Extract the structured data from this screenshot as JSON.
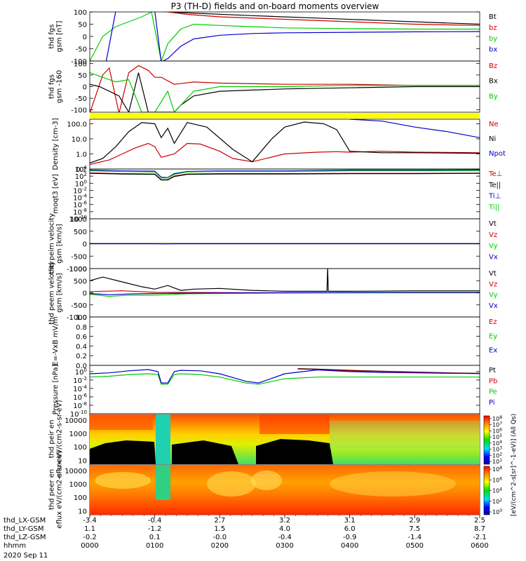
{
  "title": "P3 (TH-D) fields and on-board moments overview",
  "time_axis": {
    "rows": [
      {
        "label": "thd_LX-GSM",
        "values": [
          "-3.4",
          "-0.4",
          "2.7",
          "3.2",
          "3.1",
          "2.9",
          "2.5"
        ]
      },
      {
        "label": "thd_LY-GSM",
        "values": [
          "1.1",
          "-1.2",
          "1.5",
          "4.0",
          "6.0",
          "7.5",
          "8.7"
        ]
      },
      {
        "label": "thd_LZ-GSM",
        "values": [
          "-0.2",
          "0.1",
          "-0.0",
          "-0.4",
          "-0.9",
          "-1.4",
          "-2.1"
        ]
      },
      {
        "label": "hhmm",
        "values": [
          "0000",
          "0100",
          "0200",
          "0300",
          "0400",
          "0500",
          "0600"
        ]
      }
    ],
    "date": "2020 Sep 11"
  },
  "colorbar_label": "[eV/(cm^2-s[sr]^-1-eV)] (All Qs)",
  "chart_data": [
    {
      "type": "line",
      "ylabel": "thd fgs gsm [nT]",
      "ticks": [
        "100",
        "50",
        "0",
        "-50",
        "-100"
      ],
      "ylim": [
        -100,
        100
      ],
      "series": [
        {
          "name": "Bt",
          "color": "#000000",
          "t": [
            0.3,
            0.4,
            0.5,
            0.7,
            0.9,
            1.0,
            1.5,
            2.5,
            3.5,
            4.5,
            5.5,
            6.0
          ],
          "v": [
            400,
            300,
            180,
            120,
            110,
            105,
            96,
            85,
            75,
            65,
            55,
            50
          ]
        },
        {
          "name": "bz",
          "color": "#cc0000",
          "t": [
            0.3,
            0.5,
            0.9,
            1.0,
            1.2,
            1.5,
            2.0,
            3.0,
            4.0,
            5.0,
            6.0
          ],
          "v": [
            300,
            250,
            150,
            120,
            100,
            90,
            80,
            70,
            60,
            50,
            45
          ]
        },
        {
          "name": "by",
          "color": "#00cc00",
          "t": [
            0.0,
            0.2,
            0.4,
            0.6,
            0.8,
            0.95,
            1.1,
            1.2,
            1.4,
            1.6,
            2.0,
            2.5,
            3.0,
            4.0,
            5.0,
            6.0
          ],
          "v": [
            -100,
            0,
            40,
            60,
            80,
            100,
            -100,
            -30,
            30,
            50,
            45,
            40,
            35,
            32,
            30,
            30
          ]
        },
        {
          "name": "bx",
          "color": "#0000cc",
          "t": [
            0.0,
            0.25,
            0.4,
            0.8,
            1.0,
            1.1,
            1.2,
            1.4,
            1.6,
            2.0,
            2.5,
            3.0,
            4.0,
            5.0,
            6.0
          ],
          "v": [
            -300,
            -200,
            200,
            300,
            300,
            -300,
            -90,
            -40,
            -10,
            5,
            12,
            15,
            17,
            19,
            20
          ]
        }
      ]
    },
    {
      "type": "line",
      "ylabel": "thd fgs gsm -160",
      "ticks": [
        "100",
        "50",
        "0",
        "-50",
        "-100"
      ],
      "ylim": [
        -110,
        110
      ],
      "series": [
        {
          "name": "Bz",
          "color": "#cc0000",
          "t": [
            0.0,
            0.2,
            0.3,
            0.45,
            0.6,
            0.75,
            0.9,
            1.0,
            1.1,
            1.3,
            1.6,
            2.0,
            3.0,
            4.0,
            5.0,
            6.0
          ],
          "v": [
            -120,
            50,
            80,
            -120,
            60,
            90,
            70,
            40,
            40,
            10,
            20,
            15,
            10,
            10,
            5,
            5
          ]
        },
        {
          "name": "Bx",
          "color": "#000000",
          "t": [
            0.0,
            0.15,
            0.3,
            0.45,
            0.6,
            0.75,
            0.9,
            1.0,
            1.3,
            1.4,
            1.6,
            2.0,
            3.0,
            4.0,
            5.0,
            6.0
          ],
          "v": [
            10,
            0,
            -20,
            -40,
            -110,
            60,
            -110,
            -110,
            -110,
            -80,
            -40,
            -20,
            -10,
            -5,
            0,
            0
          ]
        },
        {
          "name": "By",
          "color": "#00cc00",
          "t": [
            0.0,
            0.2,
            0.4,
            0.6,
            0.8,
            1.0,
            1.2,
            1.3,
            1.4,
            1.6,
            2.0,
            3.0,
            4.0,
            5.0,
            6.0
          ],
          "v": [
            60,
            40,
            20,
            30,
            -110,
            -110,
            -20,
            -110,
            -80,
            -20,
            0,
            0,
            5,
            5,
            5
          ]
        }
      ]
    },
    {
      "type": "line",
      "ylabel": "Density [cm-3]",
      "ticks": [
        "100.0",
        "10.0",
        "1.0",
        "0.1"
      ],
      "ylim": [
        0.1,
        200
      ],
      "log": true,
      "series": [
        {
          "name": "Ne",
          "color": "#cc0000",
          "t": [
            0.0,
            0.3,
            0.5,
            0.7,
            0.9,
            1.0,
            1.1,
            1.3,
            1.5,
            1.7,
            2.0,
            2.2,
            2.5,
            3.0,
            3.5,
            3.8,
            4.0,
            4.5,
            5.0,
            6.0
          ],
          "v": [
            0.2,
            0.4,
            1.0,
            2.5,
            5.0,
            3.0,
            0.6,
            1.0,
            5.0,
            4.5,
            1.5,
            0.5,
            0.3,
            1.0,
            1.3,
            1.4,
            1.3,
            1.5,
            1.3,
            1.2
          ]
        },
        {
          "name": "Ni",
          "color": "#000000",
          "t": [
            0.0,
            0.2,
            0.4,
            0.6,
            0.8,
            1.0,
            1.1,
            1.2,
            1.3,
            1.5,
            1.8,
            2.2,
            2.5,
            2.8,
            3.0,
            3.3,
            3.6,
            3.8,
            4.0,
            4.5,
            5.0,
            6.0
          ],
          "v": [
            0.25,
            0.5,
            3.0,
            30,
            120,
            100,
            12,
            50,
            5,
            120,
            60,
            2.0,
            0.3,
            10,
            60,
            130,
            100,
            40,
            1.5,
            1.2,
            1.2,
            1.1
          ]
        },
        {
          "name": "Npot",
          "color": "#0000cc",
          "t": [
            4.0,
            4.5,
            5.0,
            5.5,
            6.0
          ],
          "v": [
            200,
            150,
            60,
            30,
            12
          ]
        }
      ]
    },
    {
      "type": "line",
      "ylabel": "moqt3 [eV]",
      "ticks": [
        "10^4",
        "10^2",
        "10^0",
        "10^-2",
        "10^-4",
        "10^-6",
        "10^-8",
        "10^-10"
      ],
      "ylim": [
        1e-10,
        10000.0
      ],
      "log": true,
      "series": [
        {
          "name": "Te⊥",
          "color": "#cc0000",
          "t": [
            0.0,
            0.5,
            1.0,
            1.1,
            1.2,
            1.3,
            1.5,
            2.0,
            3.0,
            4.0,
            5.0,
            6.0
          ],
          "v": [
            800,
            500,
            400,
            10,
            10,
            100,
            400,
            500,
            500,
            600,
            600,
            700
          ]
        },
        {
          "name": "Te||",
          "color": "#000000",
          "t": [
            0.0,
            0.5,
            1.0,
            1.1,
            1.2,
            1.3,
            1.5,
            2.0,
            3.0,
            4.0,
            5.0,
            6.0
          ],
          "v": [
            600,
            400,
            300,
            8,
            8,
            80,
            300,
            400,
            400,
            500,
            500,
            600
          ]
        },
        {
          "name": "Ti⊥",
          "color": "#0000cc",
          "t": [
            0.0,
            0.5,
            1.0,
            1.1,
            1.2,
            1.3,
            1.5,
            2.0,
            3.0,
            4.0,
            5.0,
            6.0
          ],
          "v": [
            5000,
            3000,
            2500,
            50,
            40,
            500,
            2000,
            3000,
            3000,
            5000,
            5000,
            6000
          ]
        },
        {
          "name": "Ti||",
          "color": "#00cc00",
          "t": [
            0.0,
            0.5,
            1.0,
            1.1,
            1.2,
            1.3,
            1.5,
            2.0,
            3.0,
            4.0,
            5.0,
            6.0
          ],
          "v": [
            3000,
            2000,
            1500,
            30,
            30,
            300,
            1500,
            2000,
            2000,
            3000,
            3000,
            3500
          ]
        }
      ]
    },
    {
      "type": "line",
      "ylabel": "thd peim velocity gsm [km/s]",
      "ticks": [
        "1000",
        "500",
        "0",
        "-500",
        "-1000"
      ],
      "ylim": [
        -1000,
        1000
      ],
      "series": [
        {
          "name": "Vt",
          "color": "#000000",
          "t": [
            0.0,
            6.0
          ],
          "v": [
            5,
            5
          ]
        },
        {
          "name": "Vz",
          "color": "#cc0000",
          "t": [
            0.0,
            1.0,
            1.1,
            1.2,
            1.3,
            6.0
          ],
          "v": [
            0,
            0,
            8,
            8,
            0,
            0
          ]
        },
        {
          "name": "Vy",
          "color": "#00cc00",
          "t": [
            0.0,
            6.0
          ],
          "v": [
            0,
            0
          ]
        },
        {
          "name": "Vx",
          "color": "#0000cc",
          "t": [
            0.0,
            1.0,
            1.1,
            1.2,
            1.3,
            6.0
          ],
          "v": [
            0,
            0,
            -8,
            -8,
            0,
            0
          ]
        }
      ]
    },
    {
      "type": "line",
      "ylabel": "thd peem velocity gsm [km/s]",
      "ticks": [
        "1000",
        "500",
        "0",
        "-500",
        "-1000"
      ],
      "ylim": [
        -1000,
        1000
      ],
      "series": [
        {
          "name": "Vt",
          "color": "#000000",
          "t": [
            0.0,
            0.2,
            0.5,
            0.8,
            1.0,
            1.2,
            1.4,
            1.6,
            2.0,
            2.5,
            3.0,
            3.5,
            3.65,
            3.66,
            3.67,
            4.0,
            5.0,
            6.0
          ],
          "v": [
            500,
            650,
            450,
            250,
            150,
            300,
            100,
            150,
            180,
            100,
            60,
            60,
            60,
            1500,
            60,
            60,
            80,
            80
          ]
        },
        {
          "name": "Vz",
          "color": "#cc0000",
          "t": [
            0.0,
            0.5,
            1.0,
            2.0,
            3.0,
            4.0,
            5.0,
            6.0
          ],
          "v": [
            50,
            80,
            20,
            10,
            0,
            0,
            0,
            0
          ]
        },
        {
          "name": "Vy",
          "color": "#00cc00",
          "t": [
            0.0,
            0.3,
            0.6,
            0.9,
            1.2,
            1.5,
            2.0,
            3.0,
            4.0,
            5.0,
            6.0
          ],
          "v": [
            -60,
            -150,
            -100,
            -100,
            -80,
            -40,
            -30,
            -10,
            0,
            10,
            10
          ]
        },
        {
          "name": "Vx",
          "color": "#0000cc",
          "t": [
            0.0,
            0.3,
            0.6,
            1.0,
            1.5,
            2.0,
            3.0,
            4.0,
            5.0,
            6.0
          ],
          "v": [
            -30,
            -80,
            -50,
            -30,
            -20,
            -10,
            0,
            10,
            20,
            20
          ]
        }
      ]
    },
    {
      "type": "line",
      "ylabel": "E=-VxB mV/m",
      "ticks": [
        "1.0",
        "0.8",
        "0.6",
        "0.4",
        "0.2",
        "0.0"
      ],
      "ylim": [
        0,
        1
      ],
      "series": [
        {
          "name": "Ez",
          "color": "#cc0000",
          "t": [],
          "v": []
        },
        {
          "name": "Ey",
          "color": "#00cc00",
          "t": [],
          "v": []
        },
        {
          "name": "Ex",
          "color": "#0000cc",
          "t": [],
          "v": []
        }
      ]
    },
    {
      "type": "line",
      "ylabel": "Pressure [nPa]",
      "ticks": [
        "10^0",
        "10^-2",
        "10^-4",
        "10^-6",
        "10^-8",
        "10^-10"
      ],
      "ylim": [
        1e-10,
        30
      ],
      "log": true,
      "series": [
        {
          "name": "Pt",
          "color": "#000000",
          "t": [
            3.2,
            3.5,
            4.0,
            4.5,
            5.0,
            5.5,
            6.0
          ],
          "v": [
            5,
            4,
            2,
            1.2,
            0.8,
            0.5,
            0.4
          ]
        },
        {
          "name": "Pb",
          "color": "#cc0000",
          "t": [
            3.2,
            3.5,
            4.0,
            4.5,
            5.0,
            5.5,
            6.0
          ],
          "v": [
            4,
            3,
            1.5,
            1.0,
            0.7,
            0.45,
            0.35
          ]
        },
        {
          "name": "Pe",
          "color": "#00cc00",
          "t": [
            0.0,
            0.3,
            0.6,
            0.9,
            1.05,
            1.1,
            1.2,
            1.3,
            1.4,
            1.7,
            2.0,
            2.4,
            2.6,
            3.0,
            3.5,
            4.0,
            4.5,
            5.0,
            5.5,
            6.0
          ],
          "v": [
            0.05,
            0.08,
            0.2,
            0.3,
            0.2,
            0.001,
            0.001,
            0.2,
            0.3,
            0.2,
            0.05,
            0.002,
            0.001,
            0.02,
            0.05,
            0.05,
            0.05,
            0.05,
            0.05,
            0.05
          ]
        },
        {
          "name": "Pi",
          "color": "#0000cc",
          "t": [
            0.0,
            0.3,
            0.6,
            0.9,
            1.05,
            1.1,
            1.2,
            1.3,
            1.4,
            1.7,
            2.0,
            2.4,
            2.6,
            3.0,
            3.5,
            4.0,
            4.5,
            5.0,
            5.5,
            6.0
          ],
          "v": [
            0.3,
            0.5,
            1.5,
            3.0,
            1.0,
            0.002,
            0.002,
            1.0,
            2.0,
            1.5,
            0.3,
            0.005,
            0.002,
            0.3,
            2.5,
            1.0,
            0.6,
            0.5,
            0.4,
            0.35
          ]
        }
      ]
    },
    {
      "type": "heatmap",
      "ylabel": "thd peir en eflux eV/(cm2-s-sr-eV)",
      "ticks": [
        "10000",
        "1000",
        "100",
        "10"
      ],
      "ylim": [
        5,
        30000
      ],
      "log": true,
      "colorbar_ticks": [
        "10^8",
        "10^7",
        "10^6",
        "10^5",
        "10^4",
        "10^3",
        "10^2",
        "10^1"
      ]
    },
    {
      "type": "heatmap",
      "ylabel": "thd peer en eflux eV/(cm2-s-sr-eV)",
      "ticks": [
        "10000",
        "1000",
        "100",
        "10"
      ],
      "ylim": [
        5,
        30000
      ],
      "log": true,
      "colorbar_ticks": [
        "10^8",
        "10^6",
        "10^4",
        "10^2",
        "10^0"
      ]
    }
  ]
}
